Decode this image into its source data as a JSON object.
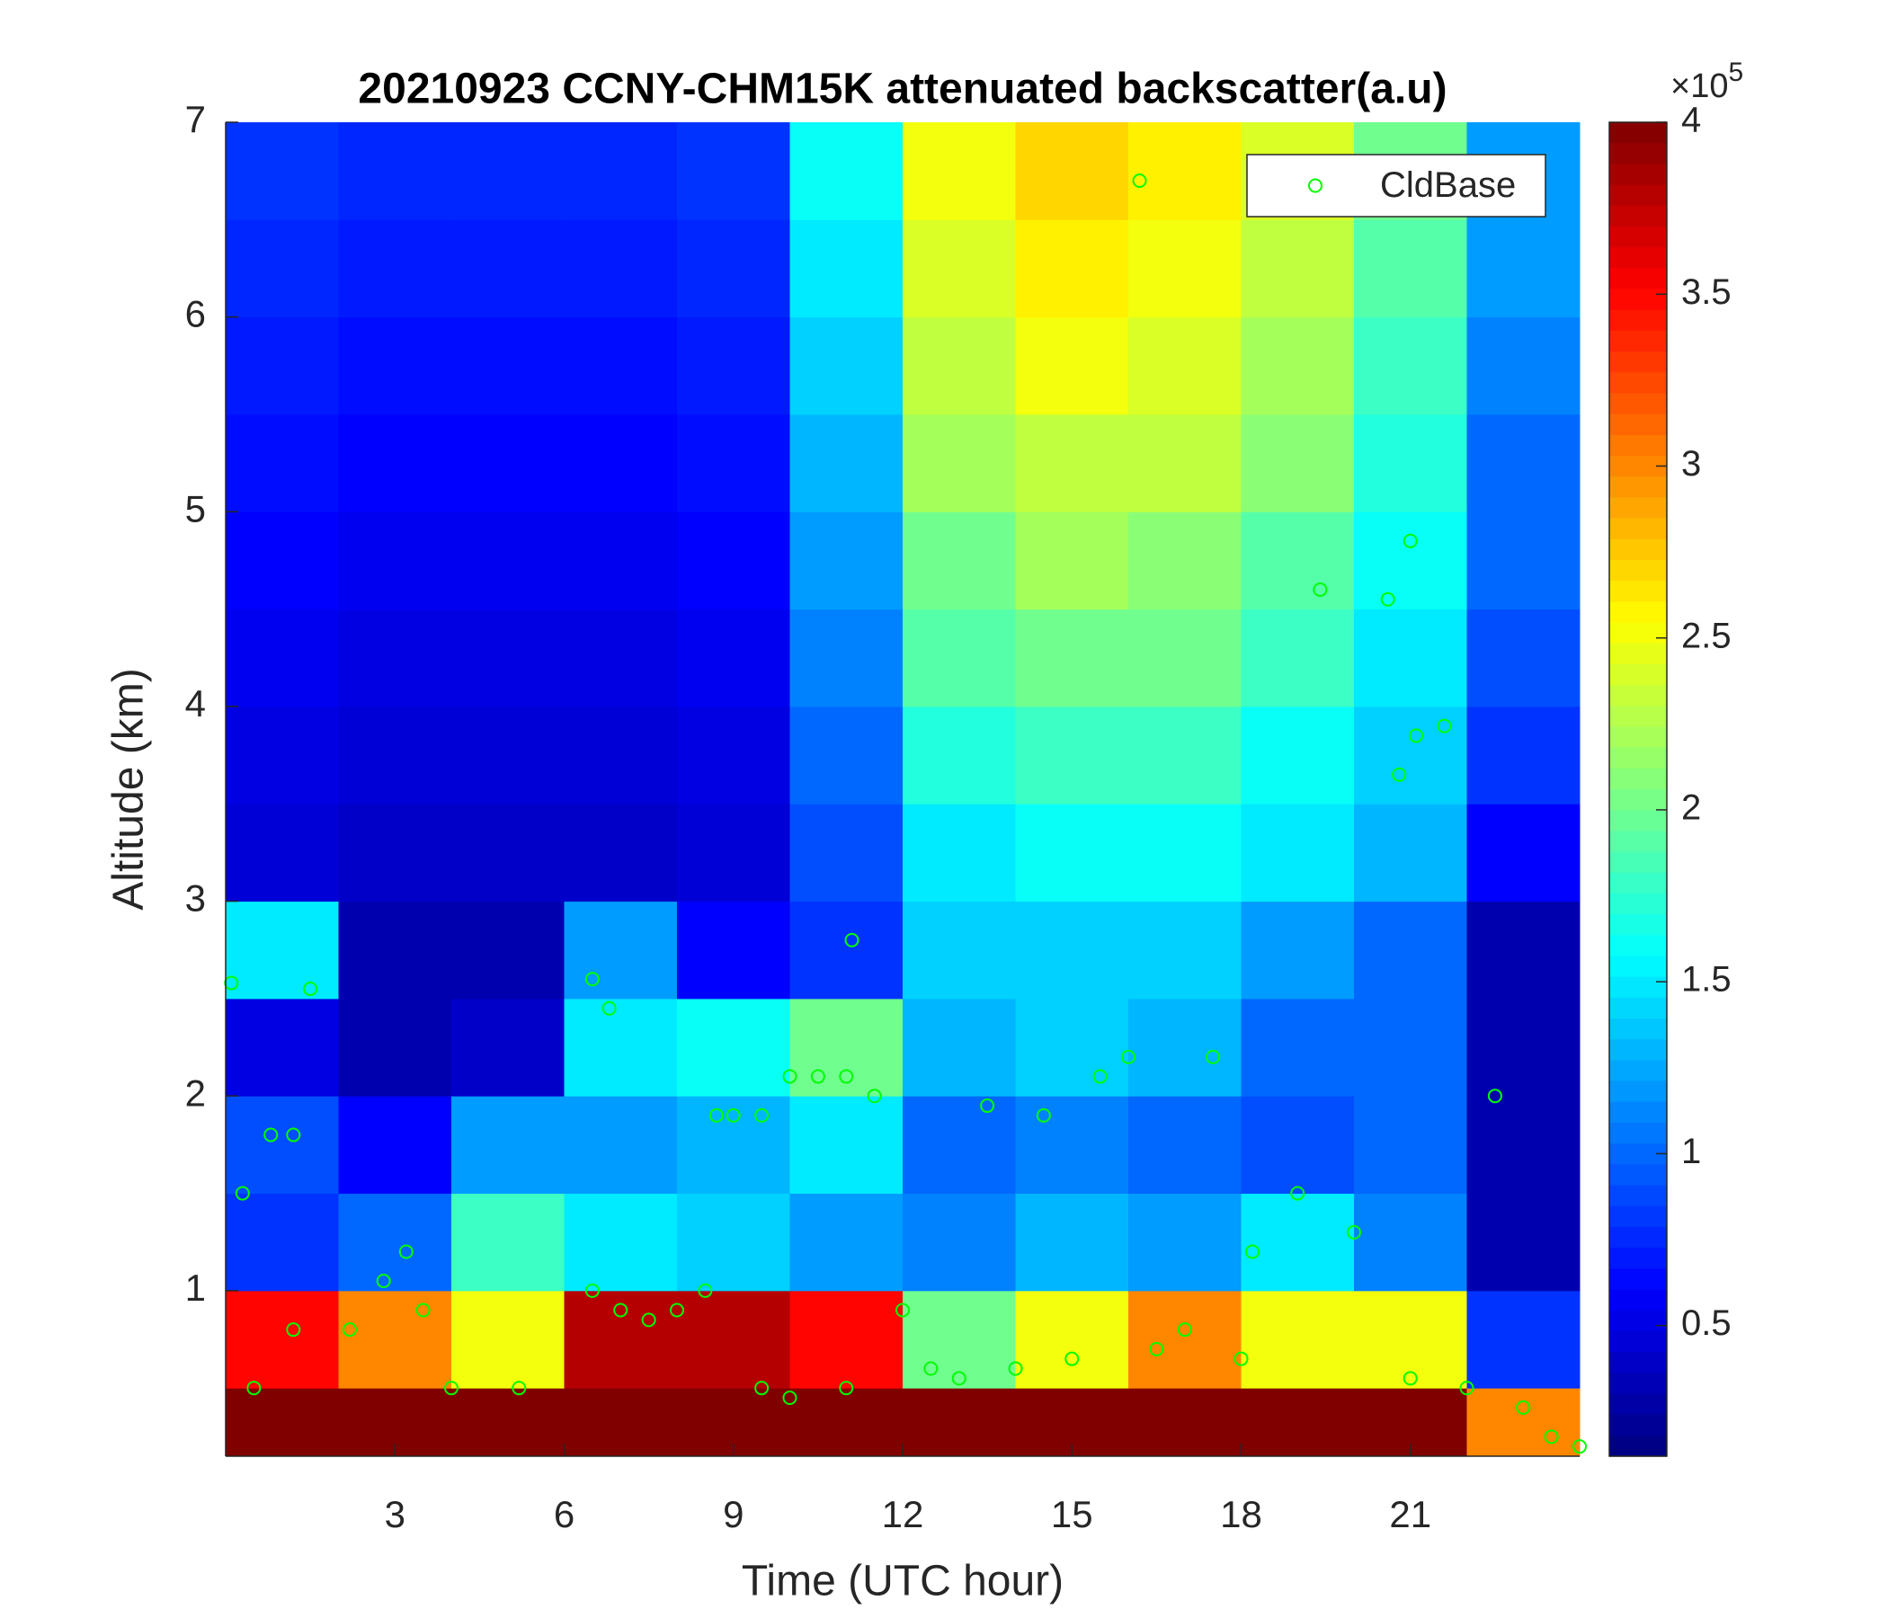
{
  "chart_data": {
    "type": "heatmap",
    "title": "20210923 CCNY-CHM15K attenuated backscatter(a.u)",
    "x_label": "Time (UTC hour)",
    "y_label": "Altitude (km)",
    "xlim": [
      0,
      24
    ],
    "xticks": [
      3,
      6,
      9,
      12,
      15,
      18,
      21
    ],
    "ylim": [
      0.15,
      7
    ],
    "yticks": [
      1,
      2,
      3,
      4,
      5,
      6,
      7
    ],
    "colormap": "jet",
    "clim": [
      0.12,
      4
    ],
    "colorbar_ticks": [
      0.5,
      1,
      1.5,
      2,
      2.5,
      3,
      3.5,
      4
    ],
    "colorbar_multiplier": "×10",
    "colorbar_exponent": "5",
    "time_bins": [
      0,
      2,
      4,
      6,
      8,
      10,
      12,
      14,
      16,
      18,
      20,
      22,
      24
    ],
    "altitude_bins": [
      0.15,
      0.5,
      1,
      1.5,
      2,
      2.5,
      3,
      3.5,
      4,
      4.5,
      5,
      5.5,
      6,
      6.5,
      7
    ],
    "z": [
      [
        4,
        4,
        4,
        4,
        4,
        4,
        4,
        4,
        4,
        4,
        4,
        3
      ],
      [
        3.5,
        3,
        2.5,
        3.8,
        3.8,
        3.5,
        2,
        2.5,
        3,
        2.5,
        2.5,
        0.8
      ],
      [
        0.8,
        1.0,
        1.8,
        1.5,
        1.4,
        1.2,
        1.1,
        1.3,
        1.2,
        1.5,
        1.1,
        0.3
      ],
      [
        0.9,
        0.6,
        1.2,
        1.2,
        1.3,
        1.5,
        1.0,
        1.1,
        1.0,
        0.9,
        1.0,
        0.3
      ],
      [
        0.5,
        0.3,
        0.4,
        1.5,
        1.6,
        2.0,
        1.3,
        1.4,
        1.3,
        1.0,
        1.0,
        0.3
      ],
      [
        1.5,
        0.3,
        0.3,
        1.2,
        0.6,
        0.8,
        1.4,
        1.4,
        1.4,
        1.2,
        1.0,
        0.3
      ],
      [
        0.45,
        0.4,
        0.4,
        0.4,
        0.45,
        0.9,
        1.5,
        1.6,
        1.6,
        1.5,
        1.3,
        0.6
      ],
      [
        0.5,
        0.45,
        0.45,
        0.45,
        0.5,
        1.0,
        1.7,
        1.8,
        1.8,
        1.6,
        1.4,
        0.8
      ],
      [
        0.55,
        0.5,
        0.5,
        0.5,
        0.55,
        1.1,
        1.9,
        2.0,
        2.0,
        1.8,
        1.5,
        0.9
      ],
      [
        0.6,
        0.55,
        0.55,
        0.55,
        0.6,
        1.2,
        2.0,
        2.2,
        2.1,
        1.9,
        1.6,
        1.0
      ],
      [
        0.65,
        0.6,
        0.6,
        0.6,
        0.65,
        1.3,
        2.2,
        2.3,
        2.3,
        2.1,
        1.7,
        1.0
      ],
      [
        0.7,
        0.65,
        0.65,
        0.65,
        0.7,
        1.4,
        2.3,
        2.5,
        2.4,
        2.2,
        1.8,
        1.1
      ],
      [
        0.75,
        0.7,
        0.7,
        0.7,
        0.75,
        1.5,
        2.4,
        2.6,
        2.5,
        2.3,
        1.9,
        1.2
      ],
      [
        0.8,
        0.75,
        0.75,
        0.75,
        0.8,
        1.6,
        2.5,
        2.7,
        2.6,
        2.4,
        2.0,
        1.2
      ]
    ],
    "legend_position": "upper right",
    "series": [
      {
        "name": "CldBase",
        "color": "#00ff00",
        "x": [
          0.1,
          0.3,
          0.8,
          1.2,
          1.5,
          0.5,
          1.2,
          2.2,
          2.8,
          3.2,
          3.5,
          4.0,
          5.2,
          6.5,
          6.8,
          6.5,
          7.0,
          7.5,
          8.0,
          8.5,
          8.7,
          9.0,
          9.5,
          10.0,
          10.5,
          11.0,
          11.1,
          11.5,
          9.5,
          10.0,
          11.0,
          12.0,
          12.5,
          13.0,
          13.5,
          14.0,
          14.5,
          15.0,
          15.5,
          16.0,
          16.2,
          16.5,
          17.0,
          17.5,
          18.0,
          18.2,
          19.0,
          19.4,
          20.0,
          20.6,
          21.0,
          21.1,
          20.8,
          21.6,
          21.0,
          22.0,
          22.5,
          23.0,
          23.5,
          24.0
        ],
        "values": [
          2.58,
          1.5,
          1.8,
          1.8,
          2.55,
          0.5,
          0.8,
          0.8,
          1.05,
          1.2,
          0.9,
          0.5,
          0.5,
          2.6,
          2.45,
          1.0,
          0.9,
          0.85,
          0.9,
          1.0,
          1.9,
          1.9,
          1.9,
          2.1,
          2.1,
          2.1,
          2.8,
          2.0,
          0.5,
          0.45,
          0.5,
          0.9,
          0.6,
          0.55,
          1.95,
          0.6,
          1.9,
          0.65,
          2.1,
          2.2,
          6.7,
          0.7,
          0.8,
          2.2,
          0.65,
          1.2,
          1.5,
          4.6,
          1.3,
          4.55,
          4.85,
          3.85,
          3.65,
          3.9,
          0.55,
          0.5,
          2.0,
          0.4,
          0.25,
          0.2
        ]
      }
    ]
  }
}
